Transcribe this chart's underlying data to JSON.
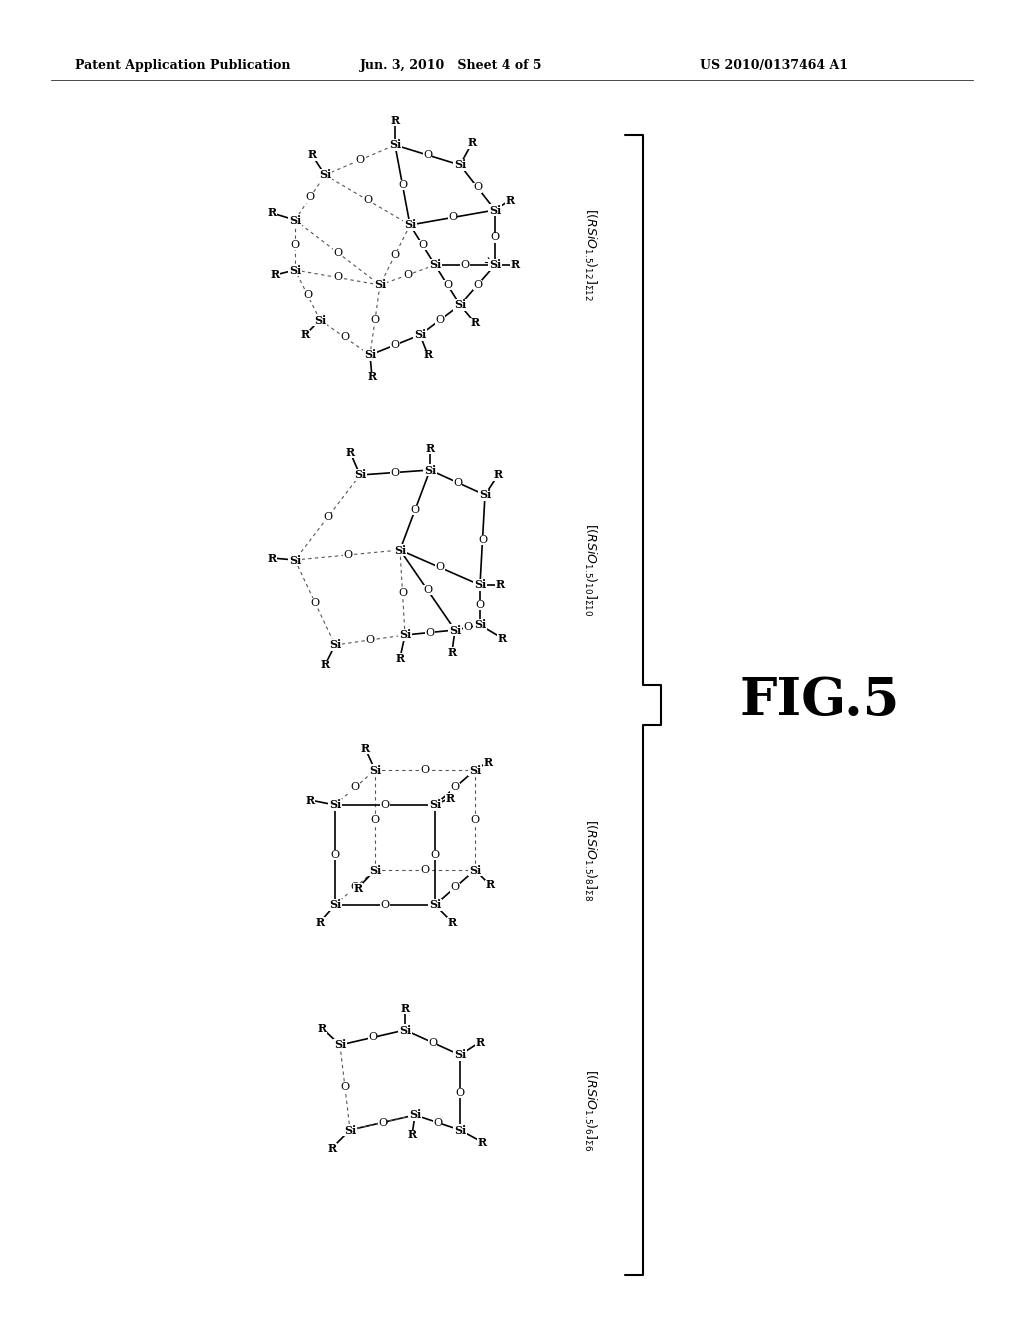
{
  "bg_color": "#ffffff",
  "header_left": "Patent Application Publication",
  "header_mid": "Jun. 3, 2010   Sheet 4 of 5",
  "header_right": "US 2010/0137464 A1",
  "fig_label": "FIG.5"
}
